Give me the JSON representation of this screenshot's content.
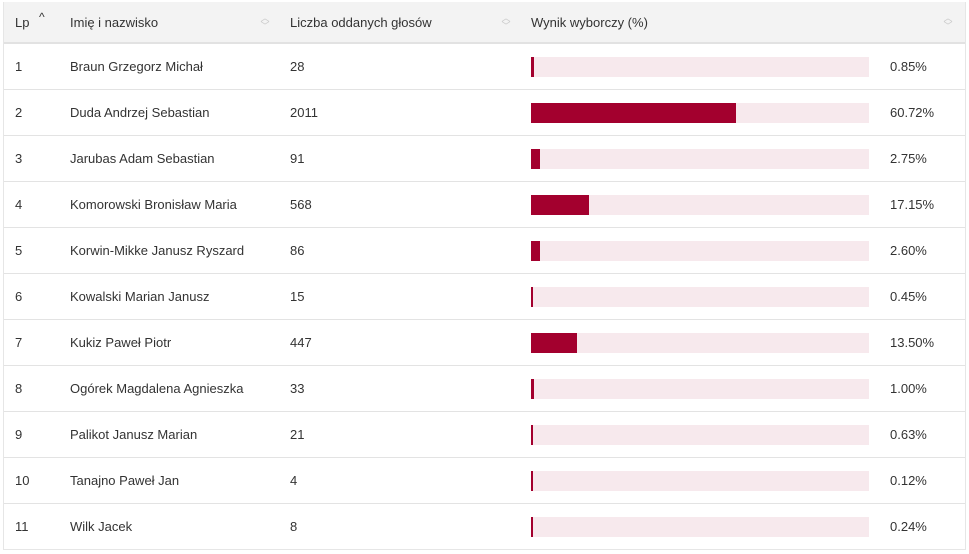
{
  "header": {
    "lp": "Lp",
    "name": "Imię i nazwisko",
    "votes": "Liczba oddanych głosów",
    "result": "Wynik wyborczy (%)"
  },
  "colors": {
    "bar": "#a3002e",
    "track": "#f7e9ed"
  },
  "rows": [
    {
      "lp": "1",
      "name": "Braun Grzegorz Michał",
      "votes": "28",
      "pct": "0.85%",
      "value": 0.85
    },
    {
      "lp": "2",
      "name": "Duda Andrzej Sebastian",
      "votes": "2011",
      "pct": "60.72%",
      "value": 60.72
    },
    {
      "lp": "3",
      "name": "Jarubas Adam Sebastian",
      "votes": "91",
      "pct": "2.75%",
      "value": 2.75
    },
    {
      "lp": "4",
      "name": "Komorowski Bronisław Maria",
      "votes": "568",
      "pct": "17.15%",
      "value": 17.15
    },
    {
      "lp": "5",
      "name": "Korwin-Mikke Janusz Ryszard",
      "votes": "86",
      "pct": "2.60%",
      "value": 2.6
    },
    {
      "lp": "6",
      "name": "Kowalski Marian Janusz",
      "votes": "15",
      "pct": "0.45%",
      "value": 0.45
    },
    {
      "lp": "7",
      "name": "Kukiz Paweł Piotr",
      "votes": "447",
      "pct": "13.50%",
      "value": 13.5
    },
    {
      "lp": "8",
      "name": "Ogórek Magdalena Agnieszka",
      "votes": "33",
      "pct": "1.00%",
      "value": 1.0
    },
    {
      "lp": "9",
      "name": "Palikot Janusz Marian",
      "votes": "21",
      "pct": "0.63%",
      "value": 0.63
    },
    {
      "lp": "10",
      "name": "Tanajno Paweł Jan",
      "votes": "4",
      "pct": "0.12%",
      "value": 0.12
    },
    {
      "lp": "11",
      "name": "Wilk Jacek",
      "votes": "8",
      "pct": "0.24%",
      "value": 0.24
    }
  ]
}
